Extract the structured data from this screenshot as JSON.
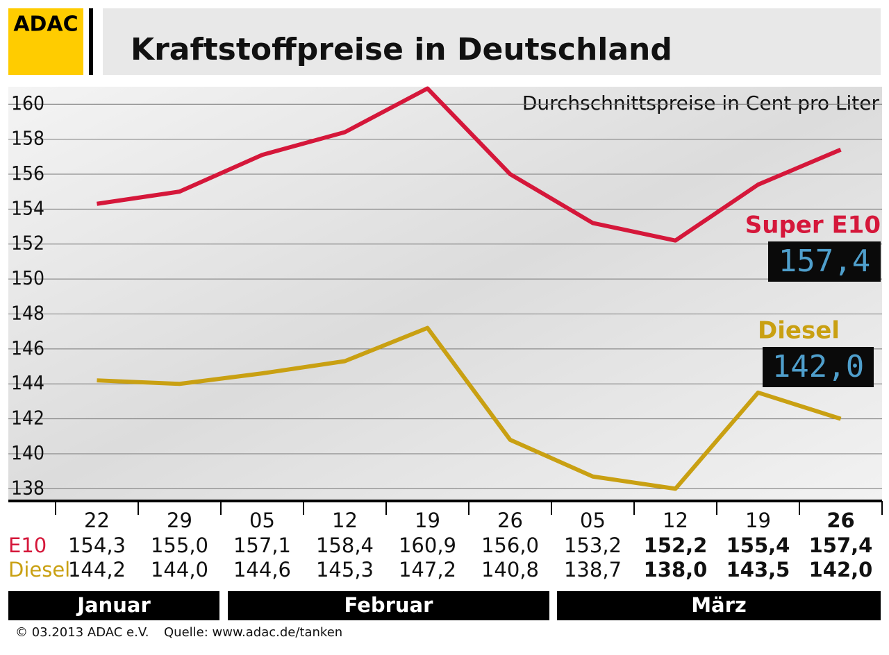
{
  "brand": "ADAC",
  "chart_data": {
    "type": "line",
    "title": "Kraftstoffpreise in Deutschland",
    "subtitle": "Durchschnittspreise in Cent pro Liter",
    "categories": [
      "22",
      "29",
      "05",
      "12",
      "19",
      "26",
      "05",
      "12",
      "19",
      "26"
    ],
    "months": [
      "Januar",
      "Januar",
      "Februar",
      "Februar",
      "Februar",
      "Februar",
      "März",
      "März",
      "März",
      "März"
    ],
    "series": [
      {
        "name": "Super E10",
        "row_label": "E10",
        "color": "#d5173a",
        "values": [
          154.3,
          155.0,
          157.1,
          158.4,
          160.9,
          156.0,
          153.2,
          152.2,
          155.4,
          157.4
        ],
        "value_labels": [
          "154,3",
          "155,0",
          "157,1",
          "158,4",
          "160,9",
          "156,0",
          "153,2",
          "152,2",
          "155,4",
          "157,4"
        ]
      },
      {
        "name": "Diesel",
        "row_label": "Diesel",
        "color": "#c9a012",
        "values": [
          144.2,
          144.0,
          144.6,
          145.3,
          147.2,
          140.8,
          138.7,
          138.0,
          143.5,
          142.0
        ],
        "value_labels": [
          "144,2",
          "144,0",
          "144,6",
          "145,3",
          "147,2",
          "140,8",
          "138,7",
          "138,0",
          "143,5",
          "142,0"
        ]
      }
    ],
    "ylim": [
      137.3,
      161
    ],
    "yticks": [
      138,
      140,
      142,
      144,
      146,
      148,
      150,
      152,
      154,
      156,
      158,
      160
    ],
    "grid": true
  },
  "footer": {
    "copyright": "© 03.2013  ADAC e.V.",
    "source": "Quelle: www.adac.de/tanken"
  }
}
